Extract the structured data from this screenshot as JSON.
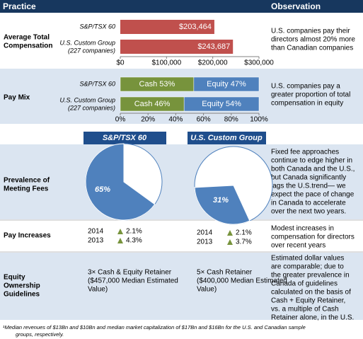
{
  "header": {
    "practice": "Practice",
    "observation": "Observation"
  },
  "compensation": {
    "label": [
      "Average Total",
      "Compensation"
    ],
    "categories": [
      [
        "S&P/TSX 60"
      ],
      [
        "U.S. Custom Group",
        "(227 companies)"
      ]
    ],
    "values": [
      203464,
      243687
    ],
    "value_labels": [
      "$203,464",
      "$243,687"
    ],
    "color": "#c0504d",
    "xlim": [
      0,
      300000
    ],
    "xticks": [
      {
        "value": 0,
        "label": "$0"
      },
      {
        "value": 100000,
        "label": "$100,000"
      },
      {
        "value": 200000,
        "label": "$200,000"
      },
      {
        "value": 300000,
        "label": "$300,000"
      }
    ],
    "observation": [
      "U.S. companies pay their",
      "directors almost 20% more",
      "than Canadian companies"
    ]
  },
  "pay_mix": {
    "label": [
      "Pay Mix"
    ],
    "categories": [
      [
        "S&P/TSX 60"
      ],
      [
        "U.S. Custom Group",
        "(227 companies)"
      ]
    ],
    "series": [
      {
        "name": "Cash",
        "color": "#77933c",
        "values": [
          53,
          46
        ],
        "value_labels": [
          "Cash 53%",
          "Cash 46%"
        ]
      },
      {
        "name": "Equity",
        "color": "#4f81bd",
        "values": [
          47,
          54
        ],
        "value_labels": [
          "Equity 47%",
          "Equity 54%"
        ]
      }
    ],
    "xlim": [
      0,
      100
    ],
    "xticks": [
      {
        "value": 0,
        "label": "0%"
      },
      {
        "value": 20,
        "label": "20%"
      },
      {
        "value": 40,
        "label": "40%"
      },
      {
        "value": 60,
        "label": "60%"
      },
      {
        "value": 80,
        "label": "80%"
      },
      {
        "value": 100,
        "label": "100%"
      }
    ],
    "observation": [
      "U.S. companies pay a",
      "greater proportion of total",
      "compensation in equity"
    ]
  },
  "columns": [
    "S&P/TSX 60",
    "U.S. Custom Group"
  ],
  "meeting_fees": {
    "label": [
      "Prevalence of",
      "Meeting Fees"
    ],
    "values": [
      65,
      31
    ],
    "value_labels": [
      "65%",
      "31%"
    ],
    "color": "#4f81bd",
    "observation": [
      "Fixed fee approaches",
      "continue to edge higher in",
      "both Canada and the U.S.,",
      "but Canada significantly",
      "lags the U.S.trend— we",
      "expect the pace of change",
      "in Canada to accelerate",
      "over the next two years."
    ]
  },
  "pay_increases": {
    "label": [
      "Pay Increases"
    ],
    "columns": [
      [
        {
          "year": "2014",
          "value": "2.1%"
        },
        {
          "year": "2013",
          "value": "4.3%"
        }
      ],
      [
        {
          "year": "2014",
          "value": "2.1%"
        },
        {
          "year": "2013",
          "value": "3.7%"
        }
      ]
    ],
    "observation": [
      "Modest increases in",
      "compensation for directors",
      "over recent years"
    ]
  },
  "equity": {
    "label": [
      "Equity",
      "Ownership",
      "Guidelines"
    ],
    "columns": [
      [
        "3× Cash & Equity Retainer",
        "($457,000 Median Estimated",
        "Value)"
      ],
      [
        "5× Cash Retainer",
        "($400,000 Median Estimated",
        "Value)"
      ]
    ],
    "observation": [
      "Estimated dollar values",
      "are comparable; due to",
      "the greater prevalence in",
      "Canada of  guidelines",
      "calculated on the basis of",
      "Cash + Equity Retainer,",
      "vs. a multiple of Cash",
      "Retainer alone, in the U.S."
    ]
  },
  "footnote": [
    "¹Median revenues of $13Bn and $10Bn and median market capitalization of $17Bn and $16Bn for the U.S. and Canadian sample",
    "groups, respectively."
  ]
}
